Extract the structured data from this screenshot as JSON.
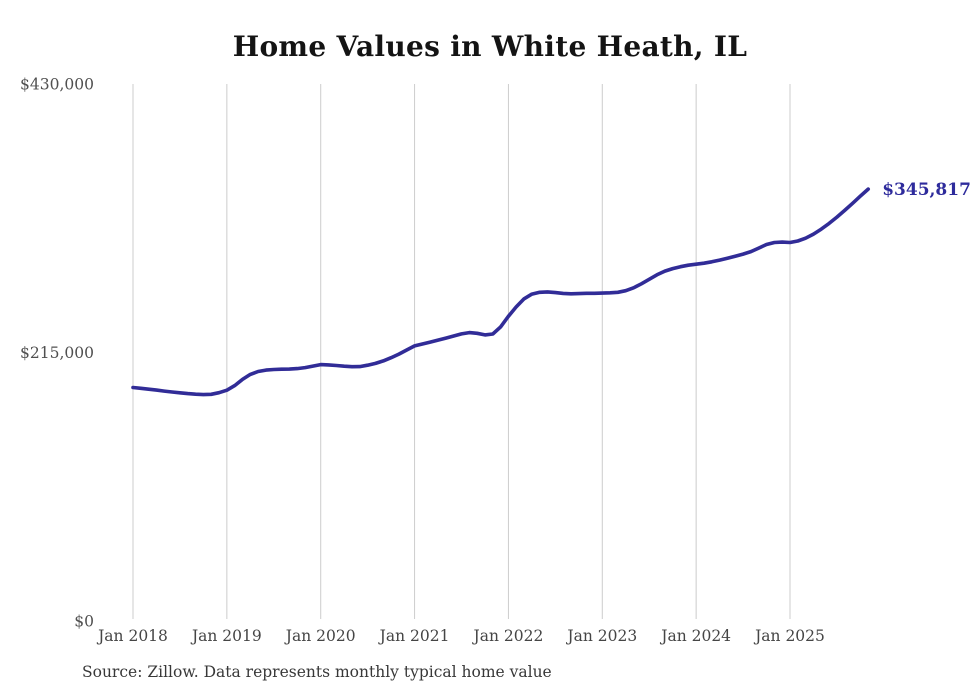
{
  "chart_data": {
    "type": "line",
    "title": "Home Values in White Heath, IL",
    "source_note": "Source: Zillow. Data represents monthly typical home value",
    "end_label": "$345,817",
    "end_value": 345817,
    "ylim": [
      0,
      430000
    ],
    "grid": "vertical-only",
    "legend": "none",
    "line_color": "#312c97",
    "end_label_color": "#2e2b9c",
    "grid_color": "#cccccc",
    "x_tick_labels": [
      "Jan 2018",
      "Jan 2019",
      "Jan 2020",
      "Jan 2021",
      "Jan 2022",
      "Jan 2023",
      "Jan 2024",
      "Jan 2025"
    ],
    "y_ticks": [
      {
        "label": "$430,000",
        "value": 430000
      },
      {
        "label": "$215,000",
        "value": 215000
      },
      {
        "label": "$0",
        "value": 0
      }
    ],
    "series": [
      {
        "name": "Monthly typical home value",
        "start_month": "2018-01",
        "end_month": "2025-11",
        "frequency": "monthly",
        "values": [
          187000,
          186300,
          185600,
          184900,
          184100,
          183400,
          182700,
          182100,
          181600,
          181300,
          181500,
          182800,
          184800,
          188500,
          193500,
          197500,
          199800,
          200900,
          201400,
          201600,
          201700,
          202100,
          202900,
          204100,
          205300,
          205100,
          204600,
          204000,
          203600,
          203700,
          204800,
          206300,
          208300,
          210800,
          213700,
          217000,
          220300,
          221800,
          223300,
          224900,
          226500,
          228200,
          229900,
          230900,
          230400,
          229100,
          229800,
          235500,
          244000,
          251500,
          258000,
          261800,
          263200,
          263500,
          263000,
          262300,
          262000,
          262200,
          262400,
          262400,
          262600,
          262800,
          263200,
          264500,
          266800,
          270000,
          273600,
          277200,
          280200,
          282200,
          283700,
          284900,
          285700,
          286500,
          287600,
          289000,
          290500,
          292100,
          293800,
          295800,
          298600,
          301500,
          303100,
          303400,
          303100,
          304300,
          306500,
          309800,
          313800,
          318400,
          323400,
          328800,
          334500,
          340200,
          345817
        ]
      }
    ]
  }
}
